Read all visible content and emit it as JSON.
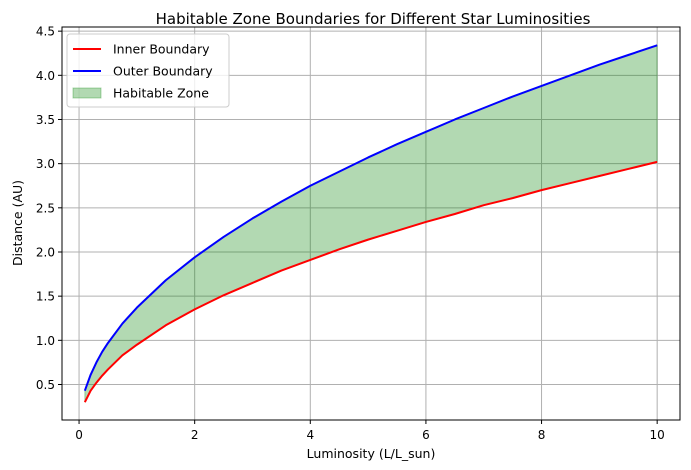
{
  "chart_data": {
    "type": "line",
    "title": "Habitable Zone Boundaries for Different Star Luminosities",
    "xlabel": "Luminosity (L/L_sun)",
    "ylabel": "Distance (AU)",
    "xlim": [
      -0.295,
      10.395
    ],
    "ylim": [
      0.098,
      4.547
    ],
    "xticks": [
      0,
      2,
      4,
      6,
      8,
      10
    ],
    "xtick_labels": [
      "0",
      "2",
      "4",
      "6",
      "8",
      "10"
    ],
    "yticks": [
      0.5,
      1.0,
      1.5,
      2.0,
      2.5,
      3.0,
      3.5,
      4.0,
      4.5
    ],
    "ytick_labels": [
      "0.5",
      "1.0",
      "1.5",
      "2.0",
      "2.5",
      "3.0",
      "3.5",
      "4.0",
      "4.5"
    ],
    "grid": true,
    "legend_position": "top-left",
    "x": [
      0.1,
      0.2,
      0.3,
      0.4,
      0.5,
      0.75,
      1.0,
      1.5,
      2.0,
      2.5,
      3.0,
      3.5,
      4.0,
      4.5,
      5.0,
      5.5,
      6.0,
      6.5,
      7.0,
      7.5,
      8.0,
      8.5,
      9.0,
      9.5,
      10.0
    ],
    "series": [
      {
        "name": "Inner Boundary",
        "color": "#ff0000",
        "values": [
          0.3,
          0.43,
          0.52,
          0.6,
          0.67,
          0.83,
          0.95,
          1.17,
          1.35,
          1.51,
          1.65,
          1.79,
          1.91,
          2.03,
          2.14,
          2.24,
          2.34,
          2.43,
          2.53,
          2.61,
          2.7,
          2.78,
          2.86,
          2.94,
          3.02
        ]
      },
      {
        "name": "Outer Boundary",
        "color": "#0000ff",
        "values": [
          0.43,
          0.61,
          0.75,
          0.87,
          0.97,
          1.19,
          1.37,
          1.68,
          1.94,
          2.17,
          2.38,
          2.57,
          2.75,
          2.91,
          3.07,
          3.22,
          3.36,
          3.5,
          3.63,
          3.76,
          3.88,
          4.0,
          4.12,
          4.23,
          4.34
        ]
      }
    ],
    "fill": {
      "name": "Habitable Zone",
      "color": "#008000",
      "opacity": 0.3,
      "between": [
        "Inner Boundary",
        "Outer Boundary"
      ]
    }
  }
}
